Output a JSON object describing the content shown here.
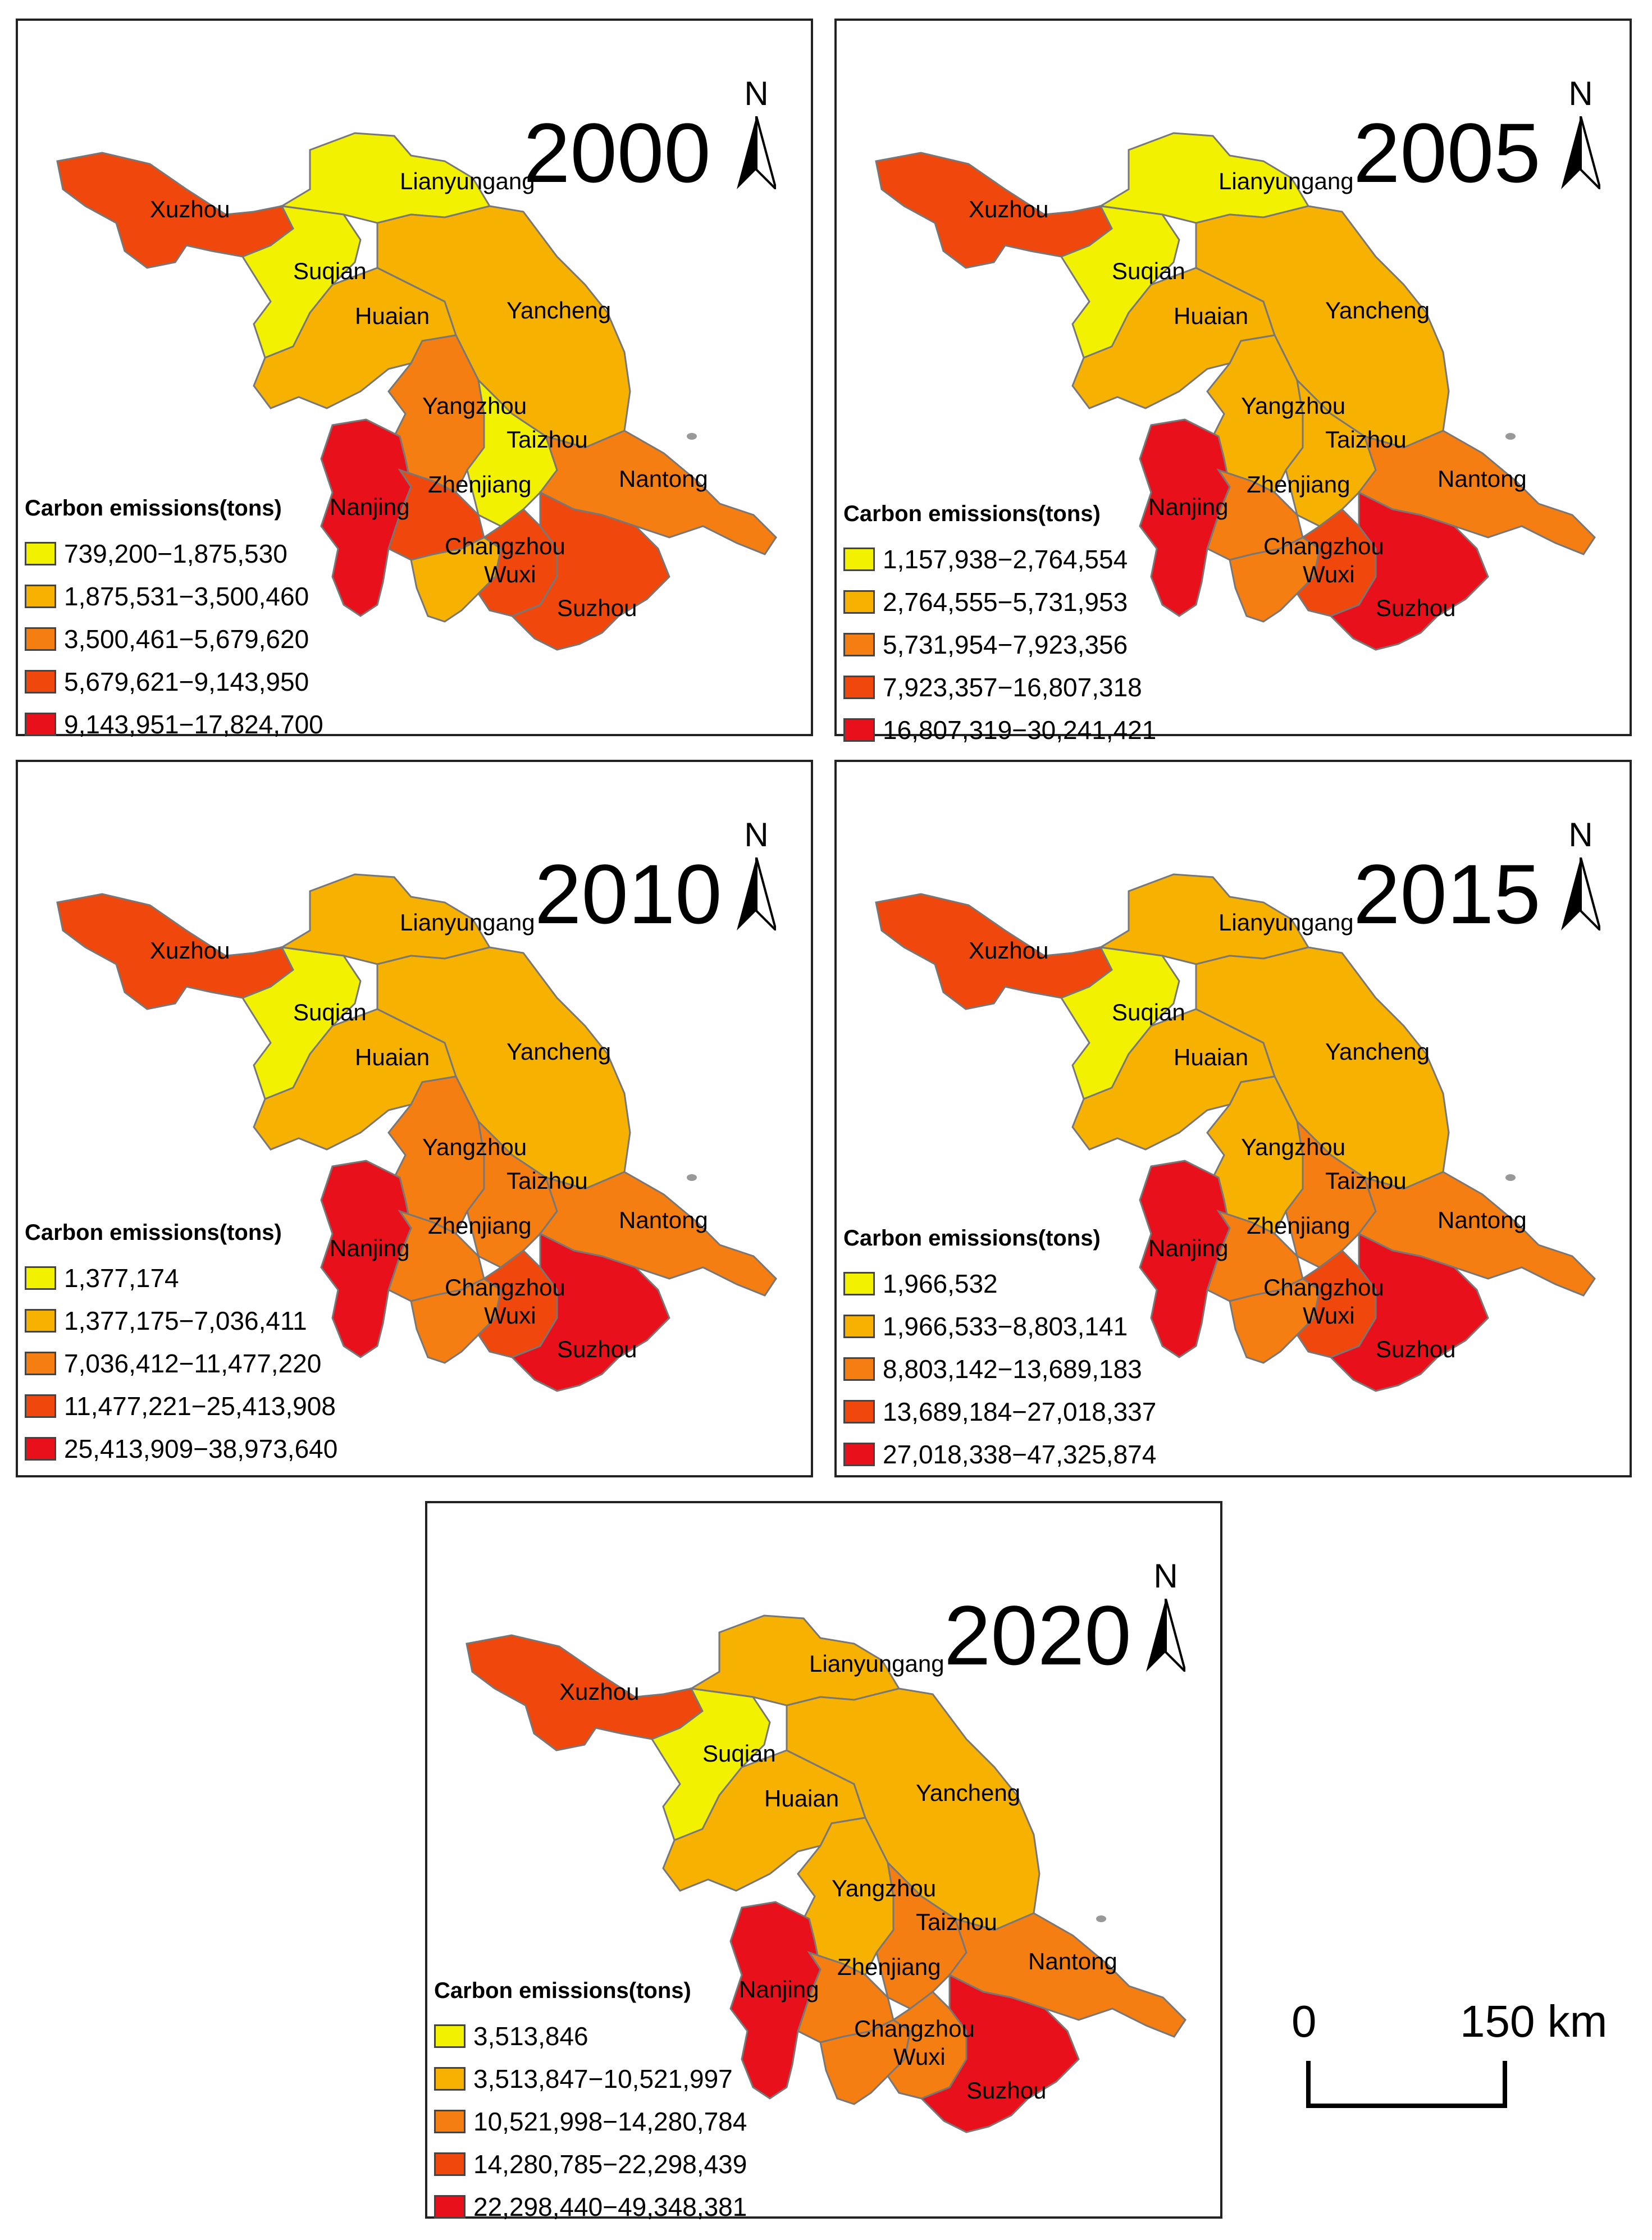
{
  "legend_title": "Carbon emissions(tons)",
  "class_colors": [
    "#f2f200",
    "#f7b100",
    "#f57e12",
    "#f0480c",
    "#e8111b"
  ],
  "north_label": "N",
  "city_labels": {
    "xuzhou": "Xuzhou",
    "lianyungang": "Lianyungang",
    "suqian": "Suqian",
    "huaian": "Huaian",
    "yancheng": "Yancheng",
    "yangzhou": "Yangzhou",
    "taizhou": "Taizhou",
    "nantong": "Nantong",
    "nanjing": "Nanjing",
    "zhenjiang": "Zhenjiang",
    "changzhou": "Changzhou",
    "wuxi": "Wuxi",
    "suzhou": "Suzhou"
  },
  "maps": [
    {
      "year": "2000",
      "legend": [
        "739,200−1,875,530",
        "1,875,531−3,500,460",
        "3,500,461−5,679,620",
        "5,679,621−9,143,950",
        "9,143,951−17,824,700"
      ],
      "classes": {
        "xuzhou": 3,
        "lianyungang": 0,
        "suqian": 0,
        "huaian": 1,
        "yancheng": 1,
        "yangzhou": 2,
        "taizhou": 0,
        "nantong": 2,
        "nanjing": 4,
        "zhenjiang": 3,
        "changzhou": 1,
        "wuxi": 3,
        "suzhou": 3
      }
    },
    {
      "year": "2005",
      "legend": [
        "1,157,938−2,764,554",
        "2,764,555−5,731,953",
        "5,731,954−7,923,356",
        "7,923,357−16,807,318",
        "16,807,319−30,241,421"
      ],
      "classes": {
        "xuzhou": 3,
        "lianyungang": 0,
        "suqian": 0,
        "huaian": 1,
        "yancheng": 1,
        "yangzhou": 1,
        "taizhou": 1,
        "nantong": 2,
        "nanjing": 4,
        "zhenjiang": 2,
        "changzhou": 2,
        "wuxi": 3,
        "suzhou": 4
      }
    },
    {
      "year": "2010",
      "legend": [
        "1,377,174",
        "1,377,175−7,036,411",
        "7,036,412−11,477,220",
        "11,477,221−25,413,908",
        "25,413,909−38,973,640"
      ],
      "classes": {
        "xuzhou": 3,
        "lianyungang": 1,
        "suqian": 0,
        "huaian": 1,
        "yancheng": 1,
        "yangzhou": 2,
        "taizhou": 2,
        "nantong": 2,
        "nanjing": 4,
        "zhenjiang": 2,
        "changzhou": 2,
        "wuxi": 3,
        "suzhou": 4
      }
    },
    {
      "year": "2015",
      "legend": [
        "1,966,532",
        "1,966,533−8,803,141",
        "8,803,142−13,689,183",
        "13,689,184−27,018,337",
        "27,018,338−47,325,874"
      ],
      "classes": {
        "xuzhou": 3,
        "lianyungang": 1,
        "suqian": 0,
        "huaian": 1,
        "yancheng": 1,
        "yangzhou": 1,
        "taizhou": 2,
        "nantong": 2,
        "nanjing": 4,
        "zhenjiang": 2,
        "changzhou": 2,
        "wuxi": 3,
        "suzhou": 4
      }
    },
    {
      "year": "2020",
      "legend": [
        "3,513,846",
        "3,513,847−10,521,997",
        "10,521,998−14,280,784",
        "14,280,785−22,298,439",
        "22,298,440−49,348,381"
      ],
      "classes": {
        "xuzhou": 3,
        "lianyungang": 1,
        "suqian": 0,
        "huaian": 1,
        "yancheng": 1,
        "yangzhou": 1,
        "taizhou": 2,
        "nantong": 2,
        "nanjing": 4,
        "zhenjiang": 2,
        "changzhou": 2,
        "wuxi": 2,
        "suzhou": 4
      }
    }
  ],
  "scale_bar": {
    "start_label": "0",
    "end_label": "150 km"
  }
}
